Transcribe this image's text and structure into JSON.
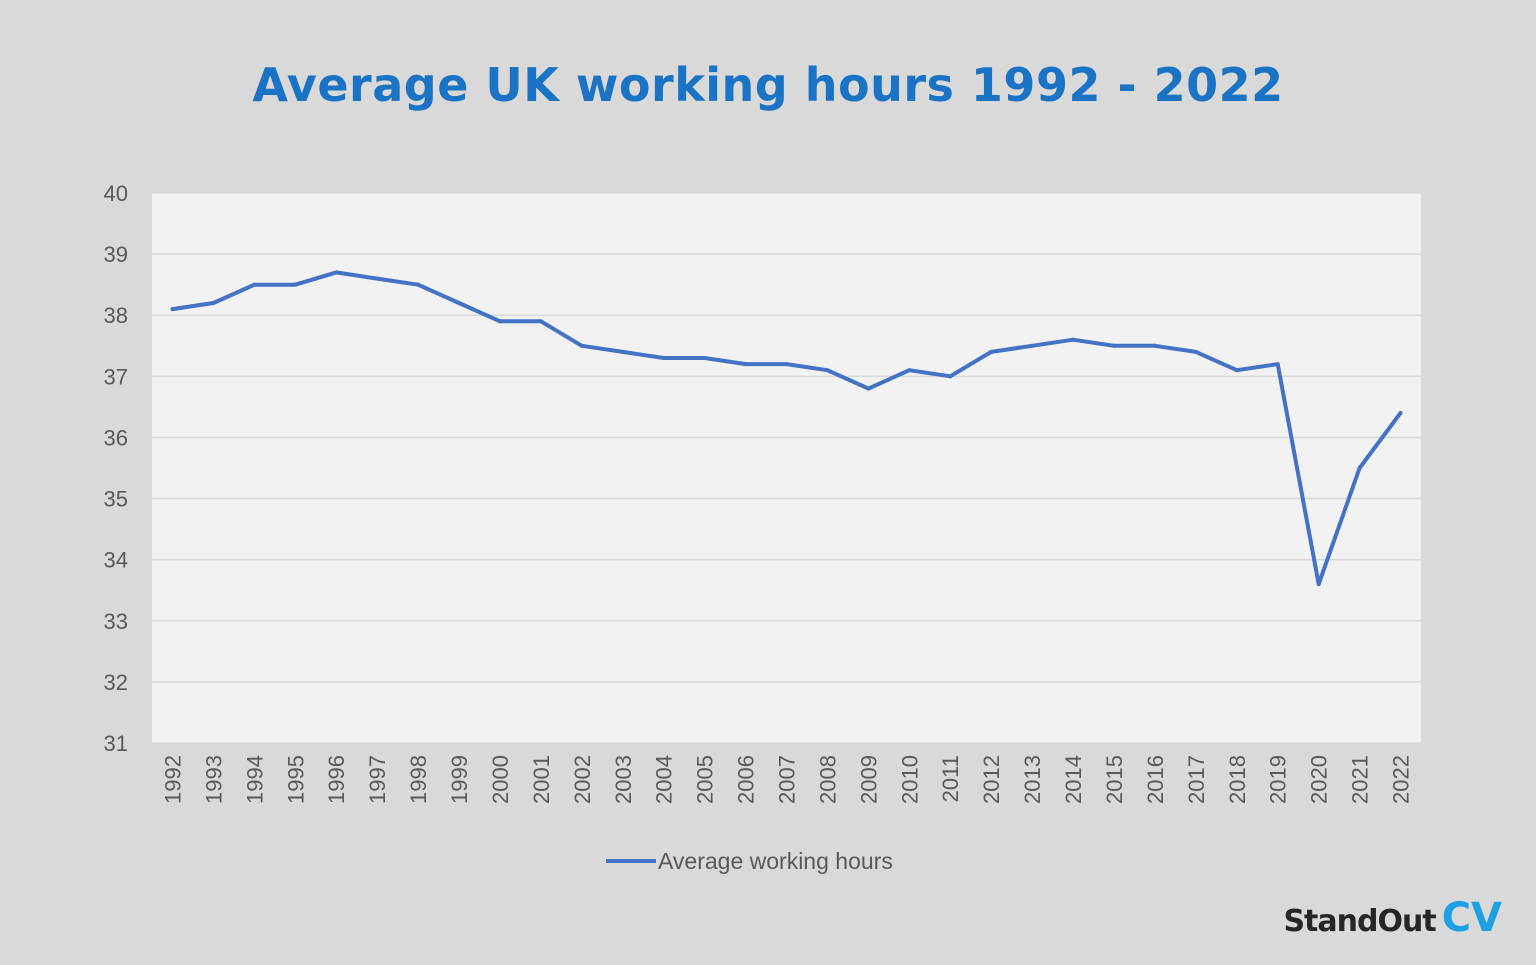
{
  "chart_data": {
    "type": "line",
    "title": "Average UK working hours 1992 - 2022",
    "xlabel": "",
    "ylabel": "",
    "categories": [
      "1992",
      "1993",
      "1994",
      "1995",
      "1996",
      "1997",
      "1998",
      "1999",
      "2000",
      "2001",
      "2002",
      "2003",
      "2004",
      "2005",
      "2006",
      "2007",
      "2008",
      "2009",
      "2010",
      "2011",
      "2012",
      "2013",
      "2014",
      "2015",
      "2016",
      "2017",
      "2018",
      "2019",
      "2020",
      "2021",
      "2022"
    ],
    "series": [
      {
        "name": "Average working hours",
        "color": "#4472c4",
        "values": [
          38.1,
          38.2,
          38.5,
          38.5,
          38.7,
          38.6,
          38.5,
          38.2,
          37.9,
          37.9,
          37.5,
          37.4,
          37.3,
          37.3,
          37.2,
          37.2,
          37.1,
          36.8,
          37.1,
          37.0,
          37.4,
          37.5,
          37.6,
          37.5,
          37.5,
          37.4,
          37.1,
          37.2,
          33.6,
          35.5,
          36.4
        ]
      }
    ],
    "ylim": [
      31,
      40
    ],
    "yticks": [
      "31",
      "32",
      "33",
      "34",
      "35",
      "36",
      "37",
      "38",
      "39",
      "40"
    ],
    "grid": true,
    "legend_position": "bottom"
  },
  "brand": {
    "name": "StandOut",
    "suffix": "CV"
  },
  "colors": {
    "title": "#1a73c4",
    "plot_bg": "#f2f2f2",
    "page_bg": "#d9d9d9",
    "brand_accent": "#1ea0e6"
  }
}
